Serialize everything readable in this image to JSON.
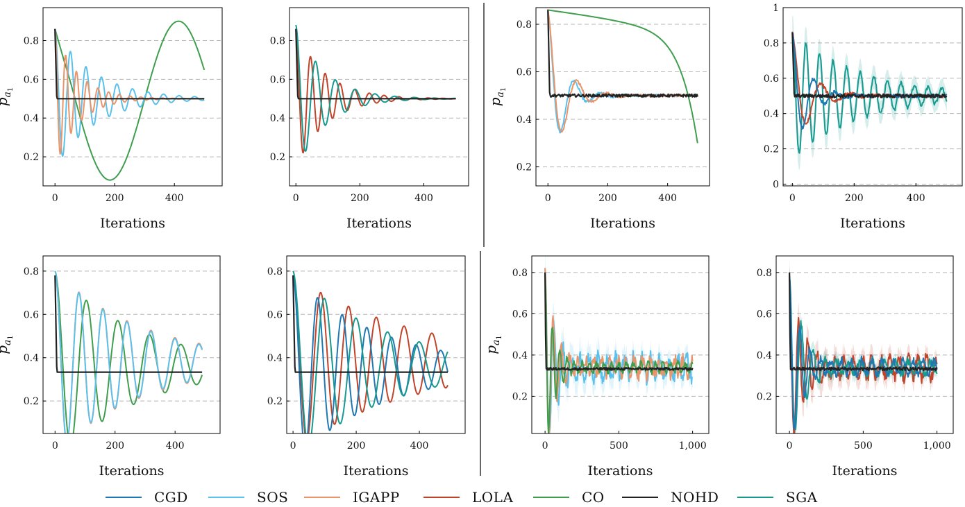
{
  "series_colors": {
    "CGD": "#1f77b4",
    "SOS": "#5bc0eb",
    "IGAPP": "#e8956b",
    "LOLA": "#c0442a",
    "CO": "#3f9e4d",
    "NOHD": "#222222",
    "SGA": "#17998f"
  },
  "legend": [
    "CGD",
    "SOS",
    "IGAPP",
    "LOLA",
    "CO",
    "NOHD",
    "SGA"
  ],
  "chart_data": [
    {
      "type": "line",
      "ylabel": "p_{a_1}",
      "xlabel": "Iterations",
      "xlim": [
        -40,
        560
      ],
      "ylim": [
        0.05,
        0.97
      ],
      "xticks": [
        0,
        200,
        400
      ],
      "xtick_labels": [
        "0",
        "200",
        "400"
      ],
      "yticks": [
        0.2,
        0.4,
        0.6,
        0.8
      ],
      "ytick_labels": [
        "0.2",
        "0.4",
        "0.6",
        "0.8"
      ],
      "grid": "y-dashed",
      "series": [
        {
          "name": "CO",
          "kind": "sine",
          "start": 0.86,
          "drop": 0,
          "center": 0.49,
          "amp": 0.41,
          "period": 460,
          "decay": 0,
          "phase": 0.0,
          "xmax": 500,
          "noise": 0
        },
        {
          "name": "SOS",
          "kind": "osc",
          "start": 0.86,
          "center": 0.5,
          "amp": 0.42,
          "period": 52,
          "decay": 0.0075,
          "xmax": 500,
          "noise": 0
        },
        {
          "name": "IGAPP",
          "kind": "osc",
          "start": 0.86,
          "center": 0.5,
          "amp": 0.42,
          "period": 36,
          "decay": 0.013,
          "xmax": 500,
          "noise": 0
        },
        {
          "name": "NOHD",
          "kind": "flat",
          "start": 0.86,
          "level": 0.5,
          "xmax": 500,
          "noise": 0
        }
      ]
    },
    {
      "type": "line",
      "ylabel": "",
      "xlabel": "Iterations",
      "xlim": [
        -20,
        540
      ],
      "ylim": [
        0.05,
        0.97
      ],
      "xticks": [
        0,
        200,
        400
      ],
      "xtick_labels": [
        "0",
        "200",
        "400"
      ],
      "yticks": [
        0.2,
        0.4,
        0.6,
        0.8
      ],
      "ytick_labels": [
        "0.2",
        "0.4",
        "0.6",
        "0.8"
      ],
      "grid": "y-dashed",
      "series": [
        {
          "name": "LOLA",
          "kind": "osc",
          "start": 0.86,
          "center": 0.5,
          "amp": 0.42,
          "period": 46,
          "decay": 0.011,
          "xmax": 500,
          "noise": 0
        },
        {
          "name": "SGA",
          "kind": "osc",
          "start": 0.88,
          "center": 0.5,
          "amp": 0.42,
          "period": 62,
          "decay": 0.011,
          "xmax": 500,
          "noise": 0
        },
        {
          "name": "NOHD",
          "kind": "flat",
          "start": 0.86,
          "level": 0.5,
          "xmax": 500,
          "noise": 0
        }
      ]
    },
    {
      "type": "line",
      "ylabel": "p_{a_1}",
      "xlabel": "Iterations",
      "xlim": [
        -40,
        540
      ],
      "ylim": [
        0.12,
        0.87
      ],
      "xticks": [
        0,
        200,
        400
      ],
      "xtick_labels": [
        "0",
        "200",
        "400"
      ],
      "yticks": [
        0.2,
        0.4,
        0.6,
        0.8
      ],
      "ytick_labels": [
        "0.2",
        "0.4",
        "0.6",
        "0.8"
      ],
      "grid": "y-dashed",
      "series": [
        {
          "name": "CO",
          "kind": "decline",
          "start": 0.86,
          "xmax": 500,
          "noise": 0
        },
        {
          "name": "SOS",
          "kind": "osc",
          "start": 0.86,
          "center": 0.5,
          "amp": 0.28,
          "period": 90,
          "decay": 0.02,
          "xmax": 500,
          "noise": 0.005
        },
        {
          "name": "IGAPP",
          "kind": "osc",
          "start": 0.86,
          "center": 0.5,
          "amp": 0.31,
          "period": 100,
          "decay": 0.018,
          "xmax": 500,
          "noise": 0.005
        },
        {
          "name": "NOHD",
          "kind": "flat",
          "start": 0.86,
          "level": 0.5,
          "xmax": 500,
          "noise": 0.006
        }
      ]
    },
    {
      "type": "line",
      "ylabel": "",
      "xlabel": "Iterations",
      "xlim": [
        -30,
        550
      ],
      "ylim": [
        -0.01,
        1.0
      ],
      "xticks": [
        0,
        200,
        400
      ],
      "xtick_labels": [
        "0",
        "200",
        "400"
      ],
      "yticks": [
        0,
        0.2,
        0.4,
        0.6,
        0.8,
        1
      ],
      "ytick_labels": [
        "0",
        "0.2",
        "0.4",
        "0.6",
        "0.8",
        "1"
      ],
      "grid": "y-dashed",
      "series": [
        {
          "name": "SGA",
          "kind": "osc",
          "start": 0.86,
          "center": 0.5,
          "amp": 0.44,
          "period": 44,
          "decay": 0.0045,
          "xmax": 500,
          "noise": 0.01,
          "band": 0.1
        },
        {
          "name": "LOLA",
          "kind": "osc",
          "start": 0.86,
          "center": 0.5,
          "amp": 0.4,
          "period": 95,
          "decay": 0.018,
          "xmax": 500,
          "noise": 0.01
        },
        {
          "name": "CGD",
          "kind": "osc",
          "start": 0.86,
          "center": 0.5,
          "amp": 0.35,
          "period": 70,
          "decay": 0.02,
          "xmax": 500,
          "noise": 0.01
        },
        {
          "name": "NOHD",
          "kind": "flat",
          "start": 0.86,
          "level": 0.5,
          "xmax": 500,
          "noise": 0.01
        }
      ]
    },
    {
      "type": "line",
      "ylabel": "p_{a_1}",
      "xlabel": "Iterations",
      "xlim": [
        -40,
        550
      ],
      "ylim": [
        0.05,
        0.87
      ],
      "xticks": [
        0,
        200,
        400
      ],
      "xtick_labels": [
        "0",
        "200",
        "400"
      ],
      "yticks": [
        0.2,
        0.4,
        0.6,
        0.8
      ],
      "ytick_labels": [
        "0.2",
        "0.4",
        "0.6",
        "0.8"
      ],
      "grid": "y-dashed",
      "series": [
        {
          "name": "CO",
          "kind": "osc",
          "start": 0.8,
          "center": 0.36,
          "amp": 0.45,
          "period": 105,
          "decay": 0.0035,
          "xmax": 490,
          "noise": 0
        },
        {
          "name": "IGAPP",
          "kind": "osc",
          "start": 0.8,
          "center": 0.38,
          "amp": 0.42,
          "period": 80,
          "decay": 0.0033,
          "xmax": 490,
          "noise": 0
        },
        {
          "name": "SOS",
          "kind": "osc",
          "start": 0.8,
          "center": 0.38,
          "amp": 0.42,
          "period": 80,
          "decay": 0.0034,
          "xmax": 490,
          "noise": 0
        },
        {
          "name": "NOHD",
          "kind": "flat",
          "start": 0.78,
          "level": 0.333,
          "xmax": 490,
          "noise": 0
        }
      ]
    },
    {
      "type": "line",
      "ylabel": "",
      "xlabel": "Iterations",
      "xlim": [
        -20,
        545
      ],
      "ylim": [
        0.05,
        0.87
      ],
      "xticks": [
        0,
        200,
        400
      ],
      "xtick_labels": [
        "0",
        "200",
        "400"
      ],
      "yticks": [
        0.2,
        0.4,
        0.6,
        0.8
      ],
      "ytick_labels": [
        "0.2",
        "0.4",
        "0.6",
        "0.8"
      ],
      "grid": "y-dashed",
      "series": [
        {
          "name": "LOLA",
          "kind": "osc",
          "start": 0.78,
          "center": 0.38,
          "amp": 0.4,
          "period": 88,
          "decay": 0.0025,
          "xmax": 490,
          "noise": 0
        },
        {
          "name": "CGD",
          "kind": "osc",
          "start": 0.78,
          "center": 0.35,
          "amp": 0.38,
          "period": 78,
          "decay": 0.0035,
          "xmax": 490,
          "noise": 0
        },
        {
          "name": "SGA",
          "kind": "osc",
          "start": 0.8,
          "center": 0.36,
          "amp": 0.44,
          "period": 100,
          "decay": 0.0034,
          "xmax": 490,
          "noise": 0
        },
        {
          "name": "NOHD",
          "kind": "flat",
          "start": 0.78,
          "level": 0.333,
          "xmax": 490,
          "noise": 0
        }
      ]
    },
    {
      "type": "line",
      "ylabel": "p_{a_1}",
      "xlabel": "Iterations",
      "xlim": [
        -90,
        1110
      ],
      "ylim": [
        0.02,
        0.88
      ],
      "xticks": [
        0,
        500,
        1000
      ],
      "xtick_labels": [
        "0",
        "500",
        "1,000"
      ],
      "yticks": [
        0.2,
        0.4,
        0.6,
        0.8
      ],
      "ytick_labels": [
        "0.2",
        "0.4",
        "0.6",
        "0.8"
      ],
      "grid": "y-dashed",
      "series": [
        {
          "name": "SOS",
          "kind": "osc",
          "start": 0.8,
          "center": 0.34,
          "amp": 0.45,
          "period": 60,
          "decay": 0.012,
          "floor": 0.05,
          "xmax": 1000,
          "noise": 0.035,
          "band": 0.09
        },
        {
          "name": "IGAPP",
          "kind": "osc",
          "start": 0.8,
          "center": 0.34,
          "amp": 0.45,
          "period": 55,
          "decay": 0.013,
          "floor": 0.04,
          "xmax": 1000,
          "noise": 0.03
        },
        {
          "name": "CO",
          "kind": "osc",
          "start": 0.8,
          "center": 0.34,
          "amp": 0.45,
          "period": 50,
          "decay": 0.016,
          "floor": 0.02,
          "xmax": 1000,
          "noise": 0.015
        },
        {
          "name": "NOHD",
          "kind": "flat",
          "start": 0.8,
          "level": 0.333,
          "xmax": 1000,
          "noise": 0.006
        }
      ]
    },
    {
      "type": "line",
      "ylabel": "",
      "xlabel": "Iterations",
      "xlim": [
        -90,
        1110
      ],
      "ylim": [
        0.02,
        0.88
      ],
      "xticks": [
        0,
        500,
        1000
      ],
      "xtick_labels": [
        "0",
        "500",
        "1,000"
      ],
      "yticks": [
        0.2,
        0.4,
        0.6,
        0.8
      ],
      "ytick_labels": [
        "0.2",
        "0.4",
        "0.6",
        "0.8"
      ],
      "grid": "y-dashed",
      "series": [
        {
          "name": "LOLA",
          "kind": "osc",
          "start": 0.78,
          "center": 0.34,
          "amp": 0.45,
          "period": 62,
          "decay": 0.01,
          "floor": 0.05,
          "xmax": 1000,
          "noise": 0.03,
          "band": 0.08
        },
        {
          "name": "SGA",
          "kind": "osc",
          "start": 0.8,
          "center": 0.34,
          "amp": 0.45,
          "period": 80,
          "decay": 0.01,
          "floor": 0.03,
          "xmax": 1000,
          "noise": 0.02,
          "band": 0.05
        },
        {
          "name": "CGD",
          "kind": "osc",
          "start": 0.8,
          "center": 0.34,
          "amp": 0.4,
          "period": 70,
          "decay": 0.012,
          "floor": 0.03,
          "xmax": 1000,
          "noise": 0.02
        },
        {
          "name": "NOHD",
          "kind": "flat",
          "start": 0.8,
          "level": 0.333,
          "xmax": 1000,
          "noise": 0.008
        }
      ]
    }
  ]
}
